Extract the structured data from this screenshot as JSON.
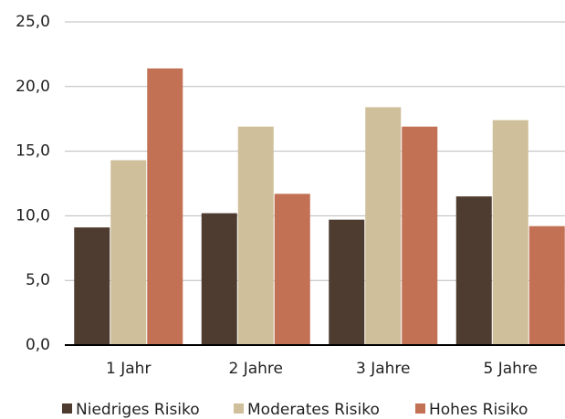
{
  "chart_data": {
    "type": "bar",
    "categories": [
      "1 Jahr",
      "2 Jahre",
      "3 Jahre",
      "5 Jahre"
    ],
    "series": [
      {
        "name": "Niedriges Risiko",
        "color": "#4f3c30",
        "values": [
          9.1,
          10.2,
          9.7,
          11.5
        ]
      },
      {
        "name": "Moderates Risiko",
        "color": "#cfbf9b",
        "values": [
          14.3,
          16.9,
          18.4,
          17.4
        ]
      },
      {
        "name": "Hohes Risiko",
        "color": "#c27155",
        "values": [
          21.4,
          11.7,
          16.9,
          9.2
        ]
      }
    ],
    "ylim": [
      0,
      25
    ],
    "yticks": [
      {
        "value": 0,
        "label": "0,0"
      },
      {
        "value": 5,
        "label": "5,0"
      },
      {
        "value": 10,
        "label": "10,0"
      },
      {
        "value": 15,
        "label": "15,0"
      },
      {
        "value": 20,
        "label": "20,0"
      },
      {
        "value": 25,
        "label": "25,0"
      }
    ],
    "grid": true,
    "legend": "bottom"
  }
}
